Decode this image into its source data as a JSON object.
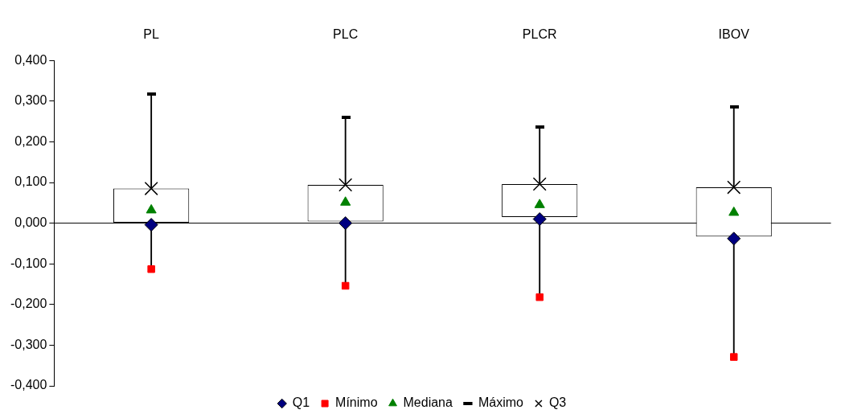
{
  "chart_data": {
    "type": "bar",
    "categories": [
      "PL",
      "PLC",
      "PLCR",
      "IBOV"
    ],
    "series": [
      {
        "type": "bar",
        "color": "#000000",
        "base": [
          -0.113,
          -0.154,
          -0.182,
          -0.329
        ],
        "values": [
          0.43,
          0.414,
          0.418,
          0.614
        ]
      },
      {
        "type": "bar",
        "color": "#ffffff",
        "base": [
          0.0,
          0.004,
          0.015,
          -0.033
        ],
        "values": [
          0.085,
          0.09,
          0.081,
          0.121
        ]
      },
      {
        "name": "Q1",
        "type": "scatter",
        "marker": "diamond",
        "color": "#000080",
        "x": [
          "PL",
          "PLC",
          "PLCR",
          "IBOV"
        ],
        "values": [
          -0.004,
          0.0,
          0.01,
          -0.038
        ]
      },
      {
        "name": "Mínimo",
        "type": "scatter",
        "marker": "square",
        "color": "#ff0000",
        "x": [
          "PL",
          "PLC",
          "PLCR",
          "IBOV"
        ],
        "values": [
          -0.113,
          -0.154,
          -0.182,
          -0.329
        ]
      },
      {
        "name": "Mediana",
        "type": "scatter",
        "marker": "triangle",
        "color": "#008000",
        "x": [
          "PL",
          "PLC",
          "PLCR",
          "IBOV"
        ],
        "values": [
          0.032,
          0.051,
          0.045,
          0.026
        ]
      },
      {
        "name": "Máximo",
        "type": "scatter",
        "color": "#000000",
        "x": [
          "PL",
          "PLC",
          "PLCR",
          "IBOV"
        ],
        "values": [
          0.317,
          0.26,
          0.236,
          0.285
        ]
      },
      {
        "name": "Q3",
        "type": "scatter",
        "marker": "cross",
        "color": "#000000",
        "x": [
          "PL",
          "PLC",
          "PLCR",
          "IBOV"
        ],
        "values": [
          0.085,
          0.094,
          0.096,
          0.088
        ]
      }
    ],
    "ylim": [
      -0.4,
      0.4
    ],
    "yticks": [
      {
        "value": 0.4,
        "label": "0,400"
      },
      {
        "value": 0.3,
        "label": "0,300"
      },
      {
        "value": 0.2,
        "label": "0,200"
      },
      {
        "value": 0.1,
        "label": "0,100"
      },
      {
        "value": 0,
        "label": "0,000"
      },
      {
        "value": -0.1,
        "label": "-0,100"
      },
      {
        "value": -0.2,
        "label": "-0,200"
      },
      {
        "value": -0.3,
        "label": "-0,300"
      },
      {
        "value": -0.4,
        "label": "-0,400"
      }
    ],
    "legend": "bottom"
  }
}
